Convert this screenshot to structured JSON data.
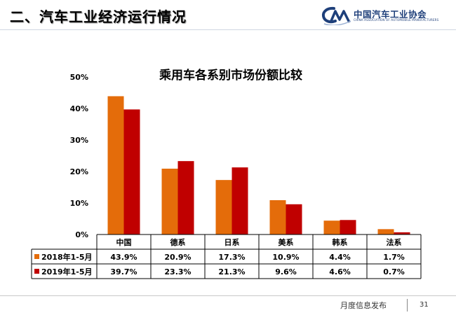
{
  "header": {
    "title": "二、汽车工业经济运行情况",
    "logo_text": "中国汽车工业协会",
    "logo_subtext": "CHINA ASSOCIATION OF AUTOMOBILE MANUFACTURERS"
  },
  "footer": {
    "text": "月度信息发布",
    "page": "31"
  },
  "colors": {
    "series_2018": "#e46c0a",
    "series_2019": "#c00000"
  },
  "chart_data": {
    "type": "bar",
    "title": "乘用车各系别市场份额比较",
    "categories": [
      "中国",
      "德系",
      "日系",
      "美系",
      "韩系",
      "法系"
    ],
    "yticks": [
      "0%",
      "10%",
      "20%",
      "30%",
      "40%",
      "50%"
    ],
    "ylim": [
      0,
      50
    ],
    "unit": "%",
    "grid": false,
    "legend": "table-left",
    "series": [
      {
        "name": "2018年1-5月",
        "values": [
          43.9,
          20.9,
          17.3,
          10.9,
          4.4,
          1.7
        ],
        "labels": [
          "43.9%",
          "20.9%",
          "17.3%",
          "10.9%",
          "4.4%",
          "1.7%"
        ],
        "color": "#e46c0a"
      },
      {
        "name": "2019年1-5月",
        "values": [
          39.7,
          23.3,
          21.3,
          9.6,
          4.6,
          0.7
        ],
        "labels": [
          "39.7%",
          "23.3%",
          "21.3%",
          "9.6%",
          "4.6%",
          "0.7%"
        ],
        "color": "#c00000"
      }
    ]
  }
}
